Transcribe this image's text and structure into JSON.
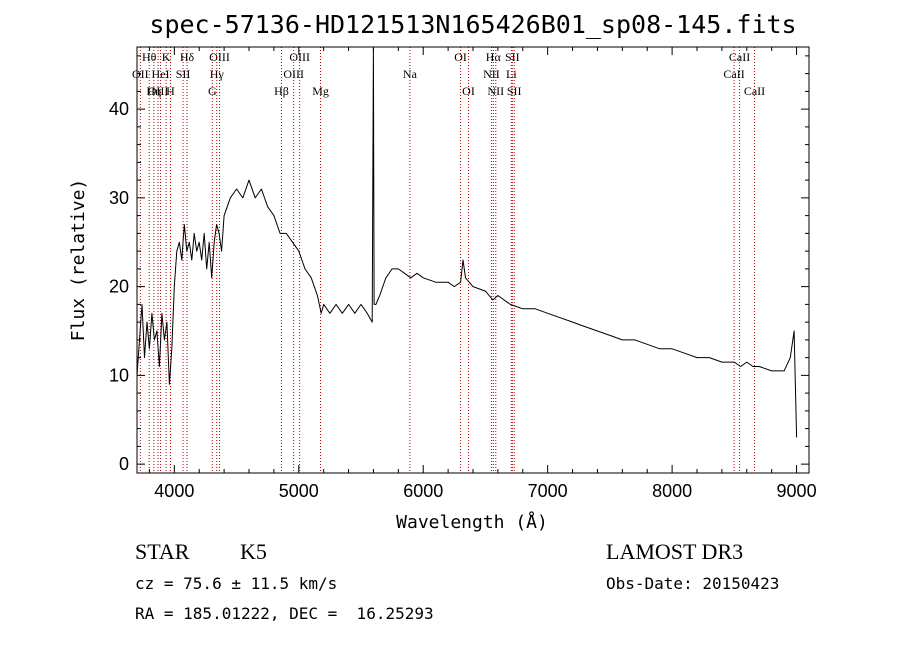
{
  "chart_data": {
    "type": "line",
    "title": "spec-57136-HD121513N165426B01_sp08-145.fits",
    "xlabel": "Wavelength (Å)",
    "ylabel": "Flux (relative)",
    "xlim": [
      3700,
      9100
    ],
    "ylim": [
      -1,
      47
    ],
    "xticks": [
      4000,
      5000,
      6000,
      7000,
      8000,
      9000
    ],
    "yticks": [
      0,
      10,
      20,
      30,
      40
    ],
    "grid": false,
    "series": [
      {
        "values": [
          [
            3700,
            10
          ],
          [
            3720,
            14
          ],
          [
            3740,
            18
          ],
          [
            3760,
            12
          ],
          [
            3780,
            16
          ],
          [
            3800,
            13
          ],
          [
            3820,
            17
          ],
          [
            3840,
            14
          ],
          [
            3860,
            15
          ],
          [
            3880,
            11
          ],
          [
            3900,
            17
          ],
          [
            3920,
            14
          ],
          [
            3940,
            16
          ],
          [
            3960,
            9
          ],
          [
            3980,
            13
          ],
          [
            4000,
            20
          ],
          [
            4020,
            24
          ],
          [
            4040,
            25
          ],
          [
            4060,
            23
          ],
          [
            4080,
            27
          ],
          [
            4100,
            24
          ],
          [
            4120,
            25
          ],
          [
            4140,
            23
          ],
          [
            4160,
            26
          ],
          [
            4180,
            24
          ],
          [
            4200,
            25
          ],
          [
            4220,
            23
          ],
          [
            4240,
            26
          ],
          [
            4260,
            22
          ],
          [
            4280,
            25
          ],
          [
            4300,
            21
          ],
          [
            4320,
            25
          ],
          [
            4340,
            27
          ],
          [
            4360,
            26
          ],
          [
            4380,
            24
          ],
          [
            4400,
            28
          ],
          [
            4450,
            30
          ],
          [
            4500,
            31
          ],
          [
            4550,
            30
          ],
          [
            4600,
            32
          ],
          [
            4650,
            30
          ],
          [
            4700,
            31
          ],
          [
            4750,
            29
          ],
          [
            4800,
            28
          ],
          [
            4850,
            26
          ],
          [
            4900,
            26
          ],
          [
            4950,
            25
          ],
          [
            5000,
            24
          ],
          [
            5050,
            22
          ],
          [
            5100,
            21
          ],
          [
            5150,
            19
          ],
          [
            5180,
            17
          ],
          [
            5200,
            18
          ],
          [
            5250,
            17
          ],
          [
            5300,
            18
          ],
          [
            5350,
            17
          ],
          [
            5400,
            18
          ],
          [
            5450,
            17
          ],
          [
            5500,
            18
          ],
          [
            5550,
            17
          ],
          [
            5590,
            16
          ],
          [
            5600,
            47
          ],
          [
            5605,
            18
          ],
          [
            5620,
            18
          ],
          [
            5650,
            19
          ],
          [
            5700,
            21
          ],
          [
            5750,
            22
          ],
          [
            5800,
            22
          ],
          [
            5850,
            21.5
          ],
          [
            5900,
            21
          ],
          [
            5950,
            21.5
          ],
          [
            6000,
            21
          ],
          [
            6100,
            20.5
          ],
          [
            6200,
            20.5
          ],
          [
            6250,
            20
          ],
          [
            6300,
            20.5
          ],
          [
            6320,
            23
          ],
          [
            6340,
            21
          ],
          [
            6400,
            20
          ],
          [
            6500,
            19.5
          ],
          [
            6560,
            18.5
          ],
          [
            6600,
            19
          ],
          [
            6700,
            18
          ],
          [
            6800,
            17.5
          ],
          [
            6900,
            17.5
          ],
          [
            7000,
            17
          ],
          [
            7100,
            16.5
          ],
          [
            7200,
            16
          ],
          [
            7300,
            15.5
          ],
          [
            7400,
            15
          ],
          [
            7500,
            14.5
          ],
          [
            7600,
            14
          ],
          [
            7700,
            14
          ],
          [
            7800,
            13.5
          ],
          [
            7900,
            13
          ],
          [
            8000,
            13
          ],
          [
            8100,
            12.5
          ],
          [
            8200,
            12
          ],
          [
            8300,
            12
          ],
          [
            8400,
            11.5
          ],
          [
            8500,
            11.5
          ],
          [
            8550,
            11
          ],
          [
            8600,
            11.5
          ],
          [
            8650,
            11
          ],
          [
            8700,
            11
          ],
          [
            8800,
            10.5
          ],
          [
            8900,
            10.5
          ],
          [
            8950,
            12
          ],
          [
            8980,
            15
          ],
          [
            9000,
            3
          ]
        ]
      }
    ],
    "lines": [
      {
        "label": "Hθ",
        "x": 3798,
        "row": 1
      },
      {
        "label": "OII",
        "x": 3727,
        "row": 2
      },
      {
        "label": "OIII",
        "x": 3869,
        "row": 3
      },
      {
        "label": "K",
        "x": 3934,
        "row": 1
      },
      {
        "label": "HeI",
        "x": 3889,
        "row": 2
      },
      {
        "label": "Hη",
        "x": 3835,
        "row": 3
      },
      {
        "label": "H",
        "x": 3969,
        "row": 3
      },
      {
        "label": "Hδ",
        "x": 4102,
        "row": 1
      },
      {
        "label": "SII",
        "x": 4070,
        "row": 2
      },
      {
        "label": "OIII",
        "x": 4363,
        "row": 1
      },
      {
        "label": "Hγ",
        "x": 4341,
        "row": 2
      },
      {
        "label": "G",
        "x": 4305,
        "row": 3
      },
      {
        "label": "OIII",
        "x": 5007,
        "row": 1
      },
      {
        "label": "OIII",
        "x": 4959,
        "row": 2
      },
      {
        "label": "Hβ",
        "x": 4861,
        "row": 3
      },
      {
        "label": "Mg",
        "x": 5175,
        "row": 3
      },
      {
        "label": "Na",
        "x": 5893,
        "row": 2
      },
      {
        "label": "OI",
        "x": 6300,
        "row": 1
      },
      {
        "label": "OI",
        "x": 6364,
        "row": 3
      },
      {
        "label": "Hα",
        "x": 6563,
        "row": 1
      },
      {
        "label": "NII",
        "x": 6548,
        "row": 2
      },
      {
        "label": "NII",
        "x": 6583,
        "row": 3
      },
      {
        "label": "SII",
        "x": 6716,
        "row": 1
      },
      {
        "label": "Li",
        "x": 6708,
        "row": 2
      },
      {
        "label": "SII",
        "x": 6731,
        "row": 3
      },
      {
        "label": "CaII",
        "x": 8542,
        "row": 1
      },
      {
        "label": "CaII",
        "x": 8498,
        "row": 2
      },
      {
        "label": "CaII",
        "x": 8662,
        "row": 3
      }
    ]
  },
  "info": {
    "class": "STAR",
    "subclass": "K5",
    "survey": "LAMOST DR3",
    "cz": "cz = 75.6 ± 11.5 km/s",
    "obsdate": "Obs-Date: 20150423",
    "radec": "RA = 185.01222, DEC =  16.25293"
  }
}
